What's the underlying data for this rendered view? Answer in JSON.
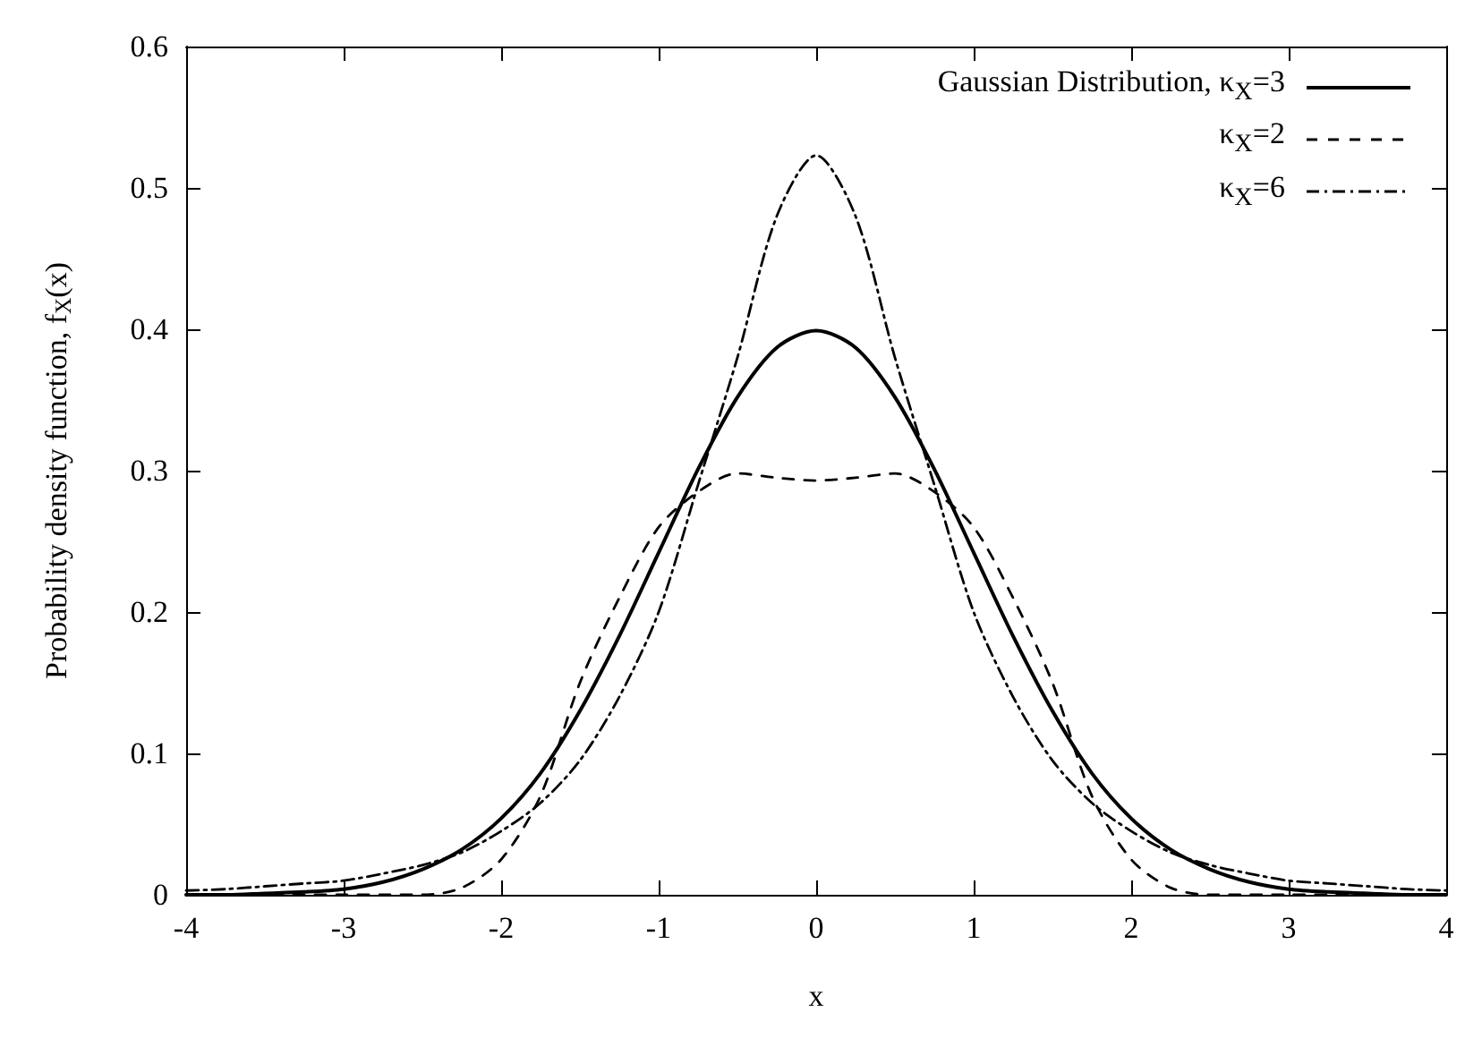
{
  "chart_data": {
    "type": "line",
    "xlabel": "x",
    "ylabel": "Probability density function, f$_{X}$(x)",
    "x": [
      -4,
      -3.75,
      -3.5,
      -3.25,
      -3,
      -2.75,
      -2.5,
      -2.25,
      -2,
      -1.75,
      -1.5,
      -1.25,
      -1,
      -0.75,
      -0.5,
      -0.25,
      0,
      0.25,
      0.5,
      0.75,
      1,
      1.25,
      1.5,
      1.75,
      2,
      2.25,
      2.5,
      2.75,
      3,
      3.25,
      3.5,
      3.75,
      4
    ],
    "series": [
      {
        "name": "Gaussian Distribution, κ$_{X}$=3",
        "color": "#000000",
        "line_style": "solid",
        "values": [
          0,
          0,
          0.001,
          0.002,
          0.004,
          0.009,
          0.018,
          0.032,
          0.054,
          0.086,
          0.13,
          0.183,
          0.242,
          0.301,
          0.352,
          0.387,
          0.399,
          0.387,
          0.352,
          0.301,
          0.242,
          0.183,
          0.13,
          0.086,
          0.054,
          0.032,
          0.018,
          0.009,
          0.004,
          0.002,
          0.001,
          0,
          0
        ]
      },
      {
        "name": "κ$_{X}$=2",
        "color": "#000000",
        "line_style": "dashed",
        "values": [
          0,
          0,
          0,
          0,
          0,
          0,
          0,
          0.005,
          0.025,
          0.07,
          0.15,
          0.21,
          0.26,
          0.285,
          0.298,
          0.295,
          0.293,
          0.295,
          0.298,
          0.285,
          0.26,
          0.21,
          0.15,
          0.07,
          0.025,
          0.005,
          0,
          0,
          0,
          0,
          0,
          0,
          0
        ]
      },
      {
        "name": "κ$_{X}$=6",
        "color": "#000000",
        "line_style": "dotted",
        "values": [
          0.003,
          0.004,
          0.006,
          0.008,
          0.01,
          0.015,
          0.021,
          0.03,
          0.045,
          0.065,
          0.095,
          0.14,
          0.2,
          0.29,
          0.38,
          0.48,
          0.523,
          0.48,
          0.38,
          0.29,
          0.2,
          0.14,
          0.095,
          0.065,
          0.045,
          0.03,
          0.021,
          0.015,
          0.01,
          0.008,
          0.006,
          0.004,
          0.003
        ]
      }
    ],
    "xlim": [
      -4,
      4
    ],
    "xticks": [
      -4,
      -3,
      -2,
      -1,
      0,
      1,
      2,
      3,
      4
    ],
    "ylim": [
      0,
      0.6
    ],
    "yticks": [
      0,
      0.1,
      0.2,
      0.3,
      0.4,
      0.5,
      0.6
    ],
    "legend": "top right",
    "grid": false,
    "marker": "none"
  }
}
